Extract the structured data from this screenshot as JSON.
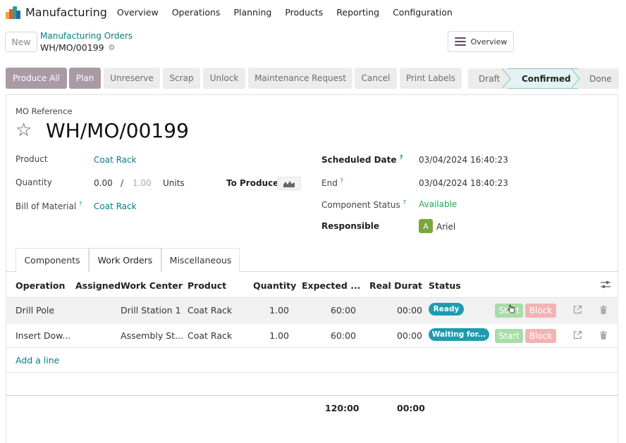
{
  "app": {
    "name": "Manufacturing",
    "menu": [
      "Overview",
      "Operations",
      "Planning",
      "Products",
      "Reporting",
      "Configuration"
    ]
  },
  "control": {
    "new_label": "New",
    "breadcrumb": "Manufacturing Orders",
    "record": "WH/MO/00199",
    "overview_label": "Overview"
  },
  "actions": [
    "Produce All",
    "Plan",
    "Unreserve",
    "Scrap",
    "Unlock",
    "Maintenance Request",
    "Cancel",
    "Print Labels"
  ],
  "stages": {
    "draft": "Draft",
    "confirmed": "Confirmed",
    "done": "Done",
    "current": "Confirmed"
  },
  "form": {
    "reference_label": "MO Reference",
    "reference": "WH/MO/00199",
    "product_label": "Product",
    "product": "Coat Rack",
    "quantity_label": "Quantity",
    "quantity_produced": "0.00",
    "quantity_sep": "/",
    "quantity_total": "1.00",
    "uom": "Units",
    "to_produce_label": "To Produce",
    "bom_label": "Bill of Material",
    "bom": "Coat Rack",
    "scheduled_label": "Scheduled Date",
    "scheduled": "03/04/2024 16:40:23",
    "end_label": "End",
    "end": "03/04/2024 18:40:23",
    "component_status_label": "Component Status",
    "component_status": "Available",
    "responsible_label": "Responsible",
    "responsible_initial": "A",
    "responsible": "Ariel",
    "help_mark": "?"
  },
  "tabs": [
    "Components",
    "Work Orders",
    "Miscellaneous"
  ],
  "active_tab": "Work Orders",
  "table": {
    "headers": [
      "Operation",
      "Assigned",
      "Work Center",
      "Product",
      "Quantity",
      "Expected ...",
      "Real Durati...",
      "Status"
    ],
    "rows": [
      {
        "operation": "Drill Pole",
        "assigned": "",
        "work_center": "Drill Station 1",
        "product": "Coat Rack",
        "quantity": "1.00",
        "expected": "60:00",
        "real": "00:00",
        "status": "Ready",
        "start": "Start",
        "block": "Block"
      },
      {
        "operation": "Insert Dow...",
        "assigned": "",
        "work_center": "Assembly St...",
        "product": "Coat Rack",
        "quantity": "1.00",
        "expected": "60:00",
        "real": "00:00",
        "status": "Waiting for...",
        "start": "Start",
        "block": "Block"
      }
    ],
    "add_line": "Add a line",
    "total_expected": "120:00",
    "total_real": "00:00"
  },
  "colors": {
    "accent": "#017e84",
    "primary_button": "#a99aa6",
    "status_badge": "#1e9bb1",
    "available": "#28a745"
  }
}
